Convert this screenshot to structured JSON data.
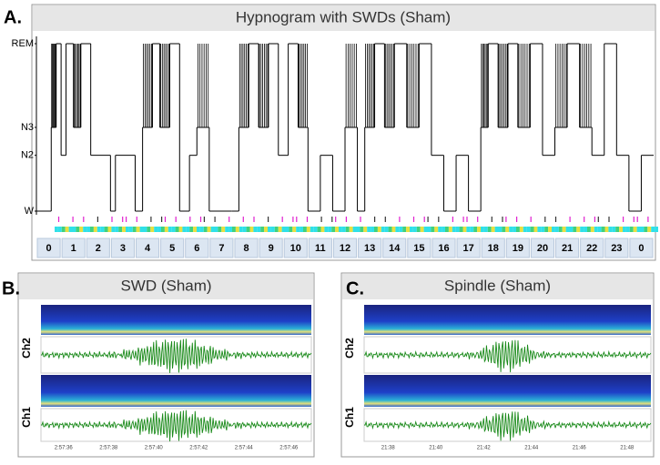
{
  "panels": [
    {
      "label": "A.",
      "chart_data": {
        "type": "step",
        "title": "Hypnogram with SWDs (Sham)",
        "x": [
          0,
          0.6,
          0.8,
          1.0,
          1.2,
          1.5,
          1.8,
          2.2,
          3.0,
          3.2,
          4.0,
          4.3,
          4.7,
          5.0,
          5.4,
          5.8,
          6.2,
          6.5,
          7.0,
          7.9,
          8.2,
          8.6,
          9.0,
          9.4,
          9.8,
          10.2,
          10.6,
          11.0,
          11.5,
          12.0,
          12.5,
          13.0,
          13.3,
          13.7,
          14.1,
          14.5,
          15.0,
          15.5,
          16.0,
          16.5,
          17.0,
          17.5,
          18.0,
          18.3,
          18.7,
          19.1,
          19.5,
          20.0,
          20.5,
          21.0,
          21.5,
          22.0,
          22.5,
          23.0,
          23.5,
          24.0,
          24.5
        ],
        "values": [
          0,
          1.5,
          3,
          1,
          3,
          1.5,
          3,
          1,
          0,
          1,
          0,
          1.5,
          3,
          1.5,
          3,
          0,
          1,
          1.5,
          0,
          0,
          1.5,
          3,
          1.5,
          3,
          1,
          3,
          1.5,
          0,
          1,
          0,
          1.5,
          0,
          1.5,
          3,
          1.5,
          3,
          1.5,
          3,
          1,
          0,
          1,
          0,
          1.5,
          3,
          1.5,
          3,
          1.5,
          3,
          1,
          1.5,
          3,
          1.5,
          1,
          3,
          1,
          0,
          1
        ],
        "xlim": [
          0,
          25
        ],
        "ylim": [
          0,
          3
        ],
        "yticks": [
          {
            "value": 0,
            "label": "W"
          },
          {
            "value": 1,
            "label": "N2"
          },
          {
            "value": 1.5,
            "label": "N3"
          },
          {
            "value": 3,
            "label": "REM"
          }
        ],
        "categories": [
          "0",
          "1",
          "2",
          "3",
          "4",
          "5",
          "6",
          "7",
          "8",
          "9",
          "10",
          "11",
          "12",
          "13",
          "14",
          "15",
          "16",
          "17",
          "18",
          "19",
          "20",
          "21",
          "22",
          "23",
          "0"
        ],
        "color": "#000000"
      }
    },
    {
      "label": "B.",
      "chart_data": {
        "type": "eeg",
        "title": "SWD (Sham)",
        "channels": [
          "Ch2",
          "Ch1"
        ],
        "xticks": [
          "2:57:36",
          "2:57:38",
          "2:57:40",
          "2:57:42",
          "2:57:44",
          "2:57:46"
        ]
      }
    },
    {
      "label": "C.",
      "chart_data": {
        "type": "eeg",
        "title": "Spindle (Sham)",
        "channels": [
          "Ch2",
          "Ch1"
        ],
        "xticks": [
          "21:38",
          "21:40",
          "21:42",
          "21:44",
          "21:46",
          "21:48"
        ]
      }
    }
  ]
}
